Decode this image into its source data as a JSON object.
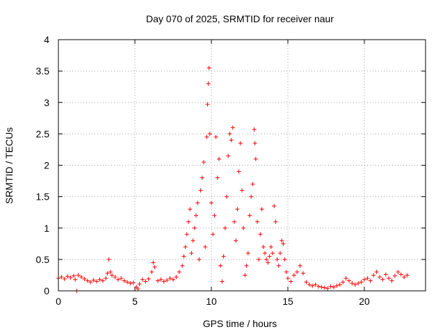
{
  "chart_data": {
    "type": "scatter",
    "title": "Day 070 of 2025, SRMTID for receiver naur",
    "xlabel": "GPS time / hours",
    "ylabel": "SRMTID / TECUs",
    "xlim": [
      0,
      24
    ],
    "ylim": [
      0,
      4
    ],
    "xticks": [
      0,
      5,
      10,
      15,
      20
    ],
    "xtick_labels": [
      "0",
      "5",
      "10",
      "15",
      "20"
    ],
    "yticks": [
      0,
      0.5,
      1,
      1.5,
      2,
      2.5,
      3,
      3.5,
      4
    ],
    "ytick_labels": [
      "0",
      "0.5",
      "1",
      "1.5",
      "2",
      "2.5",
      "3",
      "3.5",
      "4"
    ],
    "grid": true,
    "marker": "plus",
    "marker_color": "#ff0000",
    "series": [
      {
        "name": "SRMTID",
        "points": [
          [
            0.0,
            0.2
          ],
          [
            0.2,
            0.22
          ],
          [
            0.4,
            0.19
          ],
          [
            0.6,
            0.23
          ],
          [
            0.8,
            0.21
          ],
          [
            1.0,
            0.24
          ],
          [
            1.1,
            0.18
          ],
          [
            1.2,
            0.0
          ],
          [
            1.3,
            0.25
          ],
          [
            1.5,
            0.22
          ],
          [
            1.7,
            0.19
          ],
          [
            1.9,
            0.16
          ],
          [
            2.1,
            0.14
          ],
          [
            2.3,
            0.17
          ],
          [
            2.5,
            0.15
          ],
          [
            2.7,
            0.18
          ],
          [
            2.9,
            0.16
          ],
          [
            3.1,
            0.2
          ],
          [
            3.2,
            0.28
          ],
          [
            3.3,
            0.5
          ],
          [
            3.4,
            0.3
          ],
          [
            3.5,
            0.25
          ],
          [
            3.7,
            0.22
          ],
          [
            3.9,
            0.18
          ],
          [
            4.1,
            0.2
          ],
          [
            4.3,
            0.16
          ],
          [
            4.5,
            0.14
          ],
          [
            4.7,
            0.12
          ],
          [
            4.9,
            0.13
          ],
          [
            5.1,
            0.06
          ],
          [
            5.2,
            0.03
          ],
          [
            5.3,
            0.11
          ],
          [
            5.5,
            0.18
          ],
          [
            5.7,
            0.15
          ],
          [
            5.9,
            0.19
          ],
          [
            6.1,
            0.3
          ],
          [
            6.2,
            0.45
          ],
          [
            6.3,
            0.38
          ],
          [
            6.5,
            0.16
          ],
          [
            6.7,
            0.18
          ],
          [
            6.9,
            0.15
          ],
          [
            7.1,
            0.17
          ],
          [
            7.3,
            0.2
          ],
          [
            7.5,
            0.18
          ],
          [
            7.7,
            0.22
          ],
          [
            7.9,
            0.3
          ],
          [
            8.1,
            0.4
          ],
          [
            8.2,
            0.55
          ],
          [
            8.3,
            0.7
          ],
          [
            8.4,
            0.9
          ],
          [
            8.5,
            1.1
          ],
          [
            8.6,
            1.3
          ],
          [
            8.7,
            0.6
          ],
          [
            8.8,
            0.8
          ],
          [
            8.9,
            1.0
          ],
          [
            9.0,
            1.2
          ],
          [
            9.1,
            1.4
          ],
          [
            9.2,
            0.5
          ],
          [
            9.3,
            1.6
          ],
          [
            9.4,
            1.8
          ],
          [
            9.5,
            2.05
          ],
          [
            9.6,
            0.7
          ],
          [
            9.7,
            2.45
          ],
          [
            9.75,
            2.97
          ],
          [
            9.8,
            3.3
          ],
          [
            9.85,
            3.55
          ],
          [
            9.9,
            2.5
          ],
          [
            10.0,
            1.4
          ],
          [
            10.1,
            0.9
          ],
          [
            10.2,
            1.2
          ],
          [
            10.3,
            2.45
          ],
          [
            10.4,
            1.8
          ],
          [
            10.5,
            2.1
          ],
          [
            10.6,
            0.4
          ],
          [
            10.7,
            0.15
          ],
          [
            10.8,
            0.55
          ],
          [
            10.9,
            1.0
          ],
          [
            11.0,
            1.5
          ],
          [
            11.1,
            2.15
          ],
          [
            11.2,
            2.5
          ],
          [
            11.3,
            2.4
          ],
          [
            11.4,
            2.6
          ],
          [
            11.5,
            1.1
          ],
          [
            11.6,
            0.8
          ],
          [
            11.7,
            1.3
          ],
          [
            11.8,
            1.9
          ],
          [
            11.9,
            2.35
          ],
          [
            12.0,
            1.6
          ],
          [
            12.1,
            1.0
          ],
          [
            12.2,
            0.25
          ],
          [
            12.3,
            0.4
          ],
          [
            12.4,
            0.6
          ],
          [
            12.5,
            1.2
          ],
          [
            12.6,
            1.5
          ],
          [
            12.7,
            1.7
          ],
          [
            12.8,
            2.57
          ],
          [
            12.85,
            2.35
          ],
          [
            12.9,
            2.1
          ],
          [
            13.0,
            1.1
          ],
          [
            13.1,
            0.5
          ],
          [
            13.2,
            0.9
          ],
          [
            13.3,
            1.3
          ],
          [
            13.4,
            0.7
          ],
          [
            13.5,
            0.6
          ],
          [
            13.6,
            0.5
          ],
          [
            13.7,
            0.45
          ],
          [
            13.8,
            0.55
          ],
          [
            13.9,
            0.7
          ],
          [
            14.0,
            0.6
          ],
          [
            14.1,
            1.35
          ],
          [
            14.2,
            1.1
          ],
          [
            14.3,
            0.5
          ],
          [
            14.4,
            0.4
          ],
          [
            14.5,
            0.6
          ],
          [
            14.6,
            0.8
          ],
          [
            14.7,
            0.75
          ],
          [
            14.8,
            0.5
          ],
          [
            14.9,
            0.3
          ],
          [
            15.0,
            0.2
          ],
          [
            15.2,
            0.15
          ],
          [
            15.4,
            0.25
          ],
          [
            15.6,
            0.3
          ],
          [
            15.8,
            0.4
          ],
          [
            16.0,
            0.28
          ],
          [
            16.2,
            0.14
          ],
          [
            16.4,
            0.1
          ],
          [
            16.6,
            0.08
          ],
          [
            16.8,
            0.1
          ],
          [
            17.0,
            0.07
          ],
          [
            17.2,
            0.06
          ],
          [
            17.4,
            0.05
          ],
          [
            17.6,
            0.04
          ],
          [
            17.8,
            0.07
          ],
          [
            18.0,
            0.06
          ],
          [
            18.2,
            0.08
          ],
          [
            18.4,
            0.1
          ],
          [
            18.6,
            0.14
          ],
          [
            18.8,
            0.2
          ],
          [
            19.0,
            0.16
          ],
          [
            19.2,
            0.12
          ],
          [
            19.4,
            0.1
          ],
          [
            19.6,
            0.12
          ],
          [
            19.8,
            0.14
          ],
          [
            20.0,
            0.18
          ],
          [
            20.2,
            0.2
          ],
          [
            20.4,
            0.16
          ],
          [
            20.6,
            0.25
          ],
          [
            20.8,
            0.3
          ],
          [
            21.0,
            0.22
          ],
          [
            21.2,
            0.18
          ],
          [
            21.4,
            0.26
          ],
          [
            21.6,
            0.2
          ],
          [
            21.8,
            0.16
          ],
          [
            22.0,
            0.24
          ],
          [
            22.2,
            0.3
          ],
          [
            22.4,
            0.26
          ],
          [
            22.6,
            0.22
          ],
          [
            22.8,
            0.25
          ]
        ]
      }
    ]
  }
}
